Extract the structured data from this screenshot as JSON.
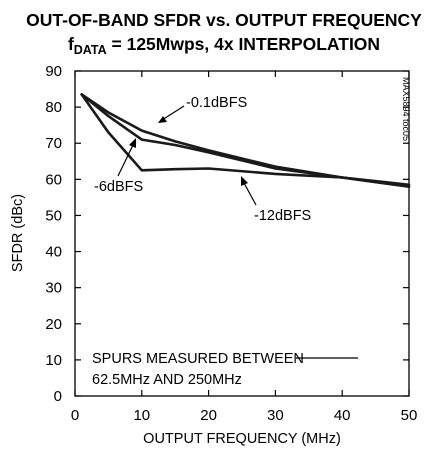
{
  "chart_data": {
    "type": "line",
    "title_line1": "OUT-OF-BAND SFDR vs. OUTPUT FREQUENCY",
    "title_line2_main": "f",
    "title_line2_sub": "DATA",
    "title_line2_rest": " = 125Mwps, 4x INTERPOLATION",
    "xlabel": "OUTPUT FREQUENCY (MHz)",
    "ylabel": "SFDR (dBc)",
    "xlim": [
      0,
      50
    ],
    "ylim": [
      0,
      90
    ],
    "x_ticks": [
      0,
      10,
      20,
      30,
      40,
      50
    ],
    "y_ticks": [
      0,
      10,
      20,
      30,
      40,
      50,
      60,
      70,
      80,
      90
    ],
    "x_tick_labels": [
      "0",
      "10",
      "20",
      "30",
      "40",
      "50"
    ],
    "y_tick_labels": [
      "0",
      "10",
      "20",
      "30",
      "40",
      "50",
      "60",
      "70",
      "80",
      "90"
    ],
    "grid": false,
    "part_code": "MAX5894 toc05",
    "note_line1": "SPURS MEASURED BETWEEN",
    "note_line2": "62.5MHz AND 250MHz",
    "series": [
      {
        "name": "-0.1dBFS",
        "x": [
          1,
          5,
          10,
          15,
          20,
          30,
          40,
          50
        ],
        "y": [
          83.5,
          78.5,
          73.5,
          70.5,
          68,
          63.5,
          60.5,
          58
        ]
      },
      {
        "name": "-6dBFS",
        "x": [
          1,
          5,
          10,
          15,
          20,
          30,
          40,
          50
        ],
        "y": [
          83.5,
          77.5,
          71,
          69.5,
          67.5,
          63,
          60.5,
          58.5
        ]
      },
      {
        "name": "-12dBFS",
        "x": [
          1,
          5,
          10,
          15,
          20,
          30,
          40,
          50
        ],
        "y": [
          83.5,
          73,
          62.5,
          62.8,
          63,
          61.5,
          60.5,
          58
        ]
      }
    ]
  }
}
